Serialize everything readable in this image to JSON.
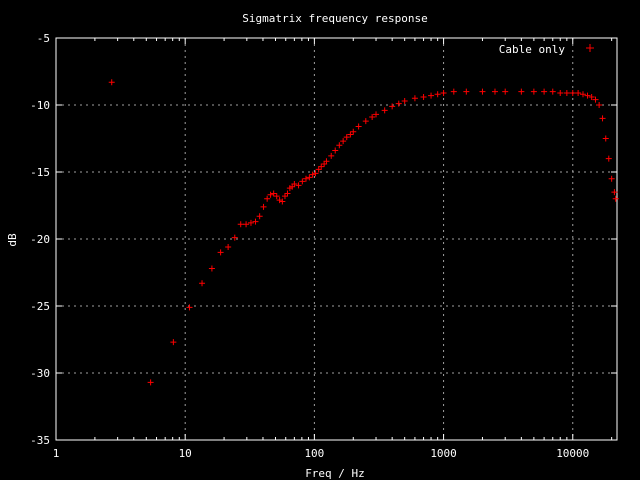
{
  "chart_data": {
    "type": "scatter",
    "title": "Sigmatrix frequency response",
    "xlabel": "Freq / Hz",
    "ylabel": "dB",
    "xscale": "log",
    "xlim": [
      1,
      22000
    ],
    "ylim": [
      -35,
      -5
    ],
    "xticks": [
      1,
      10,
      100,
      1000,
      10000
    ],
    "xtick_labels": [
      "1",
      "10",
      "100",
      "1000",
      "10000"
    ],
    "yticks": [
      -35,
      -30,
      -25,
      -20,
      -15,
      -10,
      -5
    ],
    "ytick_labels": [
      "-35",
      "-30",
      "-25",
      "-20",
      "-15",
      "-10",
      "-5"
    ],
    "grid": true,
    "legend_position": "top-right",
    "background": "#000000",
    "axis_color": "#ffffff",
    "series": [
      {
        "name": "Cable only",
        "color": "#ff0000",
        "marker": "+",
        "x": [
          2.7,
          5.4,
          8.1,
          10.8,
          13.5,
          16.1,
          18.8,
          21.5,
          24.2,
          26.9,
          29.6,
          32.3,
          35.0,
          37.7,
          40.4,
          43.1,
          45.8,
          48.4,
          51.1,
          53.8,
          56.5,
          59.2,
          61.9,
          64.6,
          67.3,
          70.0,
          75.4,
          80.7,
          86.1,
          91.5,
          96.9,
          102,
          108,
          113,
          119,
          124,
          135,
          145,
          156,
          167,
          178,
          190,
          200,
          220,
          250,
          280,
          300,
          350,
          400,
          450,
          500,
          600,
          700,
          800,
          900,
          1000,
          1200,
          1500,
          2000,
          2500,
          3000,
          4000,
          5000,
          6000,
          7000,
          8000,
          9000,
          10000,
          11000,
          12000,
          13000,
          14000,
          15000,
          16000,
          17000,
          18000,
          19000,
          20000,
          21000,
          21500
        ],
        "y": [
          -8.3,
          -30.7,
          -27.7,
          -25.1,
          -23.3,
          -22.2,
          -21.0,
          -20.6,
          -19.9,
          -18.9,
          -18.9,
          -18.8,
          -18.7,
          -18.3,
          -17.6,
          -17.0,
          -16.7,
          -16.6,
          -16.8,
          -17.1,
          -17.2,
          -16.8,
          -16.6,
          -16.2,
          -16.1,
          -15.9,
          -16.0,
          -15.7,
          -15.5,
          -15.4,
          -15.2,
          -15.1,
          -14.8,
          -14.6,
          -14.4,
          -14.2,
          -13.8,
          -13.4,
          -13.0,
          -12.7,
          -12.4,
          -12.2,
          -12.0,
          -11.6,
          -11.2,
          -10.9,
          -10.7,
          -10.4,
          -10.1,
          -9.9,
          -9.7,
          -9.5,
          -9.4,
          -9.3,
          -9.2,
          -9.1,
          -9.0,
          -9.0,
          -9.0,
          -9.0,
          -9.0,
          -9.0,
          -9.0,
          -9.0,
          -9.0,
          -9.1,
          -9.1,
          -9.1,
          -9.1,
          -9.2,
          -9.3,
          -9.4,
          -9.6,
          -10.0,
          -11.0,
          -12.5,
          -14.0,
          -15.5,
          -16.5,
          -17.0
        ]
      }
    ]
  }
}
